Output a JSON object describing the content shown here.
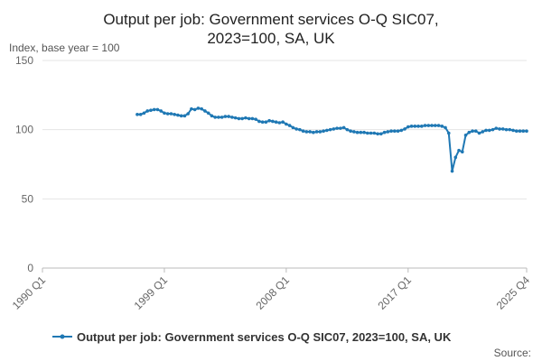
{
  "chart_data": {
    "type": "line",
    "title": [
      "Output per job: Government services O-Q SIC07,",
      "2023=100, SA, UK"
    ],
    "y_label": "Index, base year = 100",
    "source": "Source:",
    "categories": [
      "1990 Q1",
      null,
      null,
      null,
      null,
      null,
      null,
      null,
      null,
      null,
      null,
      null,
      null,
      null,
      null,
      null,
      null,
      null,
      null,
      null,
      null,
      null,
      null,
      null,
      null,
      null,
      null,
      null,
      null,
      null,
      null,
      null,
      null,
      null,
      null,
      null,
      "1999 Q1",
      null,
      null,
      null,
      null,
      null,
      null,
      null,
      null,
      null,
      null,
      null,
      null,
      null,
      null,
      null,
      null,
      null,
      null,
      null,
      null,
      null,
      null,
      null,
      null,
      null,
      null,
      null,
      null,
      null,
      null,
      null,
      null,
      null,
      null,
      null,
      "2008 Q1",
      null,
      null,
      null,
      null,
      null,
      null,
      null,
      null,
      null,
      null,
      null,
      null,
      null,
      null,
      null,
      null,
      null,
      null,
      null,
      null,
      null,
      null,
      null,
      null,
      null,
      null,
      null,
      null,
      null,
      null,
      null,
      null,
      null,
      null,
      null,
      "2017 Q1",
      null,
      null,
      null,
      null,
      null,
      null,
      null,
      null,
      null,
      null,
      null,
      null,
      null,
      null,
      null,
      null,
      null,
      null,
      null,
      null,
      null,
      null,
      null,
      null,
      null,
      null,
      null,
      null,
      null,
      null,
      null,
      null,
      null,
      null,
      "2025 Q4"
    ],
    "series": [
      {
        "name": "Output per job: Government services O-Q SIC07, 2023=100, SA, UK",
        "color": "#1f78b4",
        "values": [
          null,
          null,
          null,
          null,
          null,
          null,
          null,
          null,
          null,
          null,
          null,
          null,
          null,
          null,
          null,
          null,
          null,
          null,
          null,
          null,
          null,
          null,
          null,
          null,
          null,
          null,
          null,
          null,
          111,
          111,
          112,
          113.5,
          114,
          114.5,
          114.5,
          113.5,
          112,
          111.5,
          111.5,
          111,
          110.5,
          110,
          110,
          111.5,
          115,
          114.5,
          115.5,
          115,
          113.5,
          112,
          110,
          109,
          109,
          109,
          109.5,
          109.5,
          109,
          108.5,
          108,
          108,
          108.5,
          108,
          108,
          107.5,
          106,
          105.5,
          105.5,
          106.5,
          106,
          105.5,
          105,
          105.5,
          104,
          103,
          101.5,
          100.5,
          100,
          99,
          98.5,
          98.5,
          98,
          98.5,
          98.5,
          99,
          99.5,
          100,
          100.5,
          101,
          101,
          101.5,
          100,
          99,
          98.5,
          98,
          98,
          98,
          97.5,
          97.5,
          97.5,
          97,
          97,
          98,
          98.5,
          99,
          99,
          99,
          99.5,
          100.5,
          102,
          102.5,
          102.5,
          102.5,
          102.5,
          103,
          103,
          103,
          103,
          103,
          102.5,
          101.5,
          97.5,
          70,
          80,
          85,
          84,
          96,
          98,
          99,
          99,
          97.5,
          98.5,
          99.5,
          99.5,
          100,
          101,
          100.5,
          100.5,
          100,
          100,
          99.5,
          99,
          99,
          99,
          99
        ]
      }
    ],
    "ylim": [
      0,
      150
    ],
    "yticks": [
      0,
      50,
      100,
      150
    ],
    "grid": true
  }
}
